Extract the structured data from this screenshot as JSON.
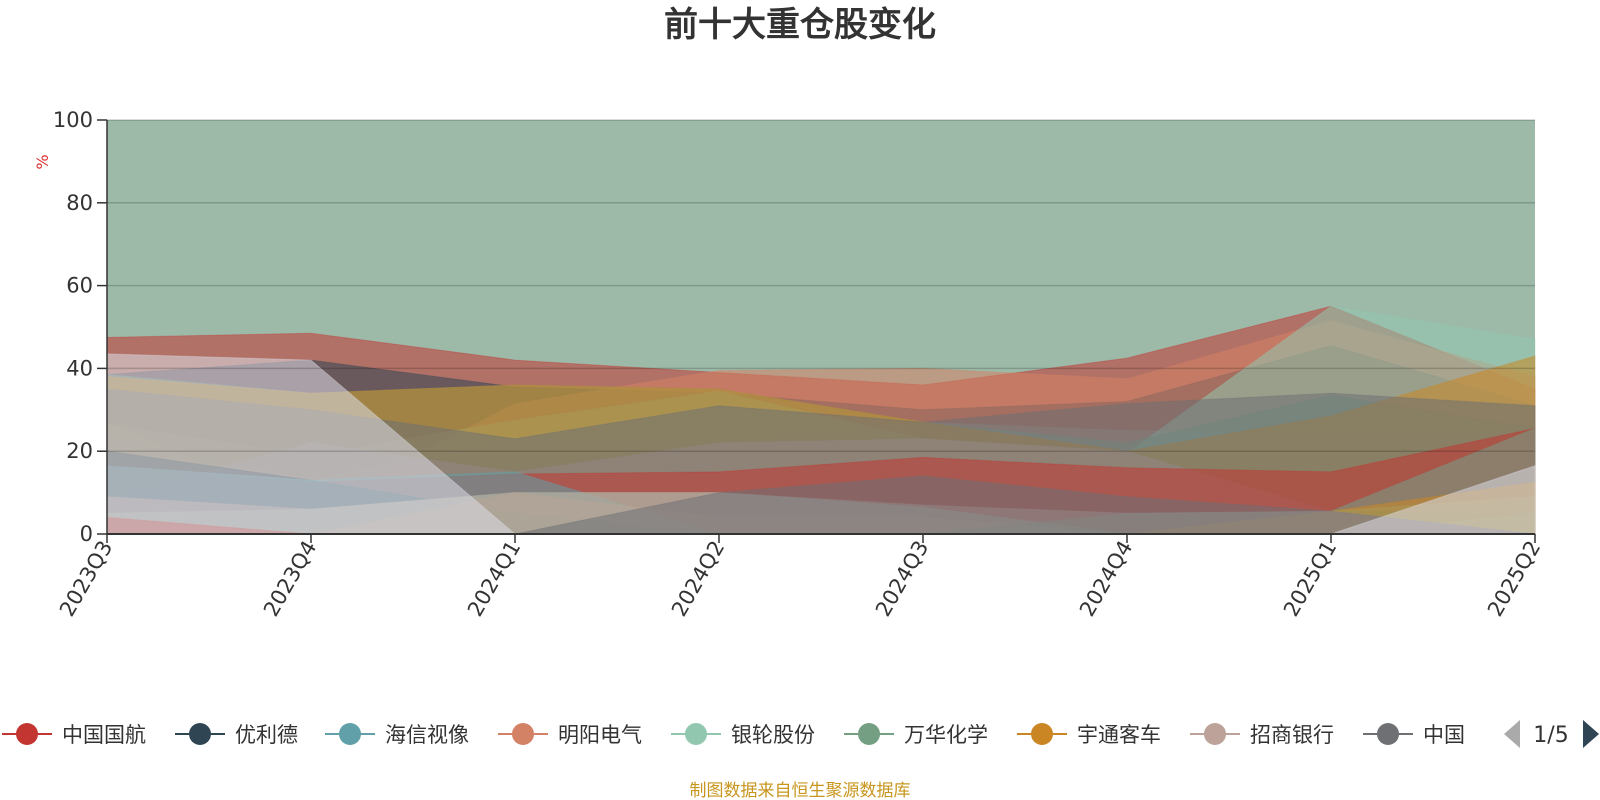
{
  "chart_data": {
    "type": "area",
    "title": "前十大重仓股变化",
    "ylabel": "%",
    "ylim": [
      0,
      100
    ],
    "yticks": [
      0,
      20,
      40,
      60,
      80,
      100
    ],
    "categories": [
      "2023Q3",
      "2023Q4",
      "2024Q1",
      "2024Q2",
      "2024Q3",
      "2024Q4",
      "2025Q1",
      "2025Q2"
    ],
    "layers": [
      {
        "color": "#c23531",
        "values": [
          47.5,
          48.5,
          42,
          39,
          36,
          42.5,
          55,
          35
        ]
      },
      {
        "color": "#2f4554",
        "values": [
          38.5,
          42,
          35.5,
          34,
          30,
          32,
          45.5,
          31
        ]
      },
      {
        "color": "#61a0a8",
        "values": [
          23.5,
          13,
          23,
          22,
          27,
          25,
          24,
          25.5
        ]
      },
      {
        "color": "#d48265",
        "values": [
          27,
          6,
          31.5,
          39.5,
          40,
          37.5,
          51.5,
          38
        ]
      },
      {
        "color": "#91c7ae",
        "values": [
          26.5,
          19,
          27.5,
          34.5,
          23,
          19.5,
          55,
          47
        ]
      },
      {
        "color": "#749f83",
        "values": [
          38.5,
          34,
          36,
          35,
          27,
          22,
          33.5,
          25.5
        ]
      },
      {
        "color": "#ca8622",
        "values": [
          38,
          34,
          36,
          35,
          27,
          20,
          28.5,
          43
        ]
      },
      {
        "color": "#bda29a",
        "values": [
          8.5,
          22,
          15,
          22,
          23,
          20,
          5.5,
          25.5
        ]
      },
      {
        "color": "#6e7074",
        "values": [
          35,
          30,
          23,
          31,
          27,
          31.5,
          34,
          31
        ]
      },
      {
        "color": "#c23531",
        "values": [
          16.5,
          12.5,
          14.5,
          15,
          18.5,
          16,
          15,
          25.5
        ]
      },
      {
        "color": "#2f4554",
        "values": [
          20,
          13,
          5,
          0,
          0,
          0,
          5.5,
          5
        ]
      },
      {
        "color": "#61a0a8",
        "values": [
          16.5,
          13,
          15,
          0,
          0,
          0,
          0,
          5
        ]
      },
      {
        "color": "#d48265",
        "values": [
          4,
          0,
          10,
          4,
          4,
          0,
          5.5,
          0
        ]
      },
      {
        "color": "#91c7ae",
        "values": [
          5,
          6,
          10,
          10,
          6.5,
          0,
          5.5,
          9
        ]
      },
      {
        "color": "#749f83",
        "values": [
          0,
          0,
          0,
          0,
          0,
          5,
          5.5,
          25.5
        ]
      },
      {
        "color": "#ca8622",
        "values": [
          0,
          0,
          0,
          0,
          0,
          0,
          5.5,
          12.5
        ]
      },
      {
        "color": "#bda29a",
        "values": [
          9,
          6,
          10,
          10,
          7,
          5,
          5.5,
          0
        ]
      },
      {
        "color": "#6e7074",
        "values": [
          0,
          0,
          0,
          10,
          14,
          9,
          5.5,
          0
        ]
      },
      {
        "color": "#c23531",
        "values": [
          4,
          0,
          0,
          0,
          0,
          0,
          0,
          0
        ]
      },
      {
        "color": "#dcdde6",
        "values": [
          43.5,
          42,
          0,
          0,
          0,
          0,
          0,
          16.5
        ]
      },
      {
        "color": "#6e7074",
        "values": [
          0,
          0,
          0,
          0,
          0,
          0,
          0,
          0
        ]
      }
    ],
    "legend": [
      {
        "name": "中国国航",
        "color": "#c23531"
      },
      {
        "name": "优利德",
        "color": "#2f4554"
      },
      {
        "name": "海信视像",
        "color": "#61a0a8"
      },
      {
        "name": "明阳电气",
        "color": "#d48265"
      },
      {
        "name": "银轮股份",
        "color": "#91c7ae"
      },
      {
        "name": "万华化学",
        "color": "#749f83"
      },
      {
        "name": "宇通客车",
        "color": "#ca8622"
      },
      {
        "name": "招商银行",
        "color": "#bda29a"
      },
      {
        "name": "中国",
        "color": "#6e7074"
      }
    ],
    "legend_page": "1/5",
    "background_color": "#9dbaa9",
    "grid": true
  },
  "source_note": "制图数据来自恒生聚源数据库"
}
